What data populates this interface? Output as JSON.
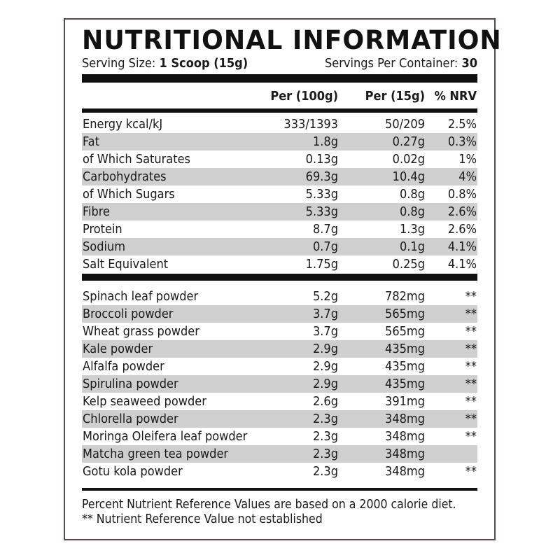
{
  "title": "NUTRITIONAL INFORMATION",
  "serving": {
    "size_label": "Serving Size:",
    "size_value": "1 Scoop (15g)",
    "per_container_label": "Servings Per Container:",
    "per_container_value": "30"
  },
  "headers": {
    "per100": "Per (100g)",
    "per15": "Per (15g)",
    "nrv": "% NRV"
  },
  "nutrients": [
    {
      "name": "Energy kcal/kJ",
      "per100": "333/1393",
      "per15": "50/209",
      "nrv": "2.5%"
    },
    {
      "name": "Fat",
      "per100": "1.8g",
      "per15": "0.27g",
      "nrv": "0.3%"
    },
    {
      "name": "of Which Saturates",
      "per100": "0.13g",
      "per15": "0.02g",
      "nrv": "1%"
    },
    {
      "name": "Carbohydrates",
      "per100": "69.3g",
      "per15": "10.4g",
      "nrv": "4%"
    },
    {
      "name": "of Which Sugars",
      "per100": "5.33g",
      "per15": "0.8g",
      "nrv": "0.8%"
    },
    {
      "name": "Fibre",
      "per100": "5.33g",
      "per15": "0.8g",
      "nrv": "2.6%"
    },
    {
      "name": "Protein",
      "per100": "8.7g",
      "per15": "1.3g",
      "nrv": "2.6%"
    },
    {
      "name": "Sodium",
      "per100": "0.7g",
      "per15": "0.1g",
      "nrv": "4.1%"
    },
    {
      "name": "Salt Equivalent",
      "per100": "1.75g",
      "per15": "0.25g",
      "nrv": "4.1%"
    }
  ],
  "ingredients": [
    {
      "name": "Spinach leaf powder",
      "per100": "5.2g",
      "per15": "782mg",
      "nrv": "**"
    },
    {
      "name": "Broccoli powder",
      "per100": "3.7g",
      "per15": "565mg",
      "nrv": "**"
    },
    {
      "name": "Wheat grass powder",
      "per100": "3.7g",
      "per15": "565mg",
      "nrv": "**"
    },
    {
      "name": "Kale powder",
      "per100": "2.9g",
      "per15": "435mg",
      "nrv": "**"
    },
    {
      "name": "Alfalfa powder",
      "per100": "2.9g",
      "per15": "435mg",
      "nrv": "**"
    },
    {
      "name": "Spirulina powder",
      "per100": "2.9g",
      "per15": "435mg",
      "nrv": "**"
    },
    {
      "name": "Kelp seaweed powder",
      "per100": "2.6g",
      "per15": "391mg",
      "nrv": "**"
    },
    {
      "name": "Chlorella powder",
      "per100": "2.3g",
      "per15": "348mg",
      "nrv": "**"
    },
    {
      "name": "Moringa Oleifera leaf powder",
      "per100": "2.3g",
      "per15": "348mg",
      "nrv": "**"
    },
    {
      "name": "Matcha green tea powder",
      "per100": "2.3g",
      "per15": "348mg",
      "nrv": ""
    },
    {
      "name": "Gotu kola powder",
      "per100": "2.3g",
      "per15": "348mg",
      "nrv": "**"
    }
  ],
  "footer": {
    "line1": "Percent Nutrient Reference Values are based on a 2000 calorie diet.",
    "line2": "** Nutrient Reference Value not established"
  }
}
